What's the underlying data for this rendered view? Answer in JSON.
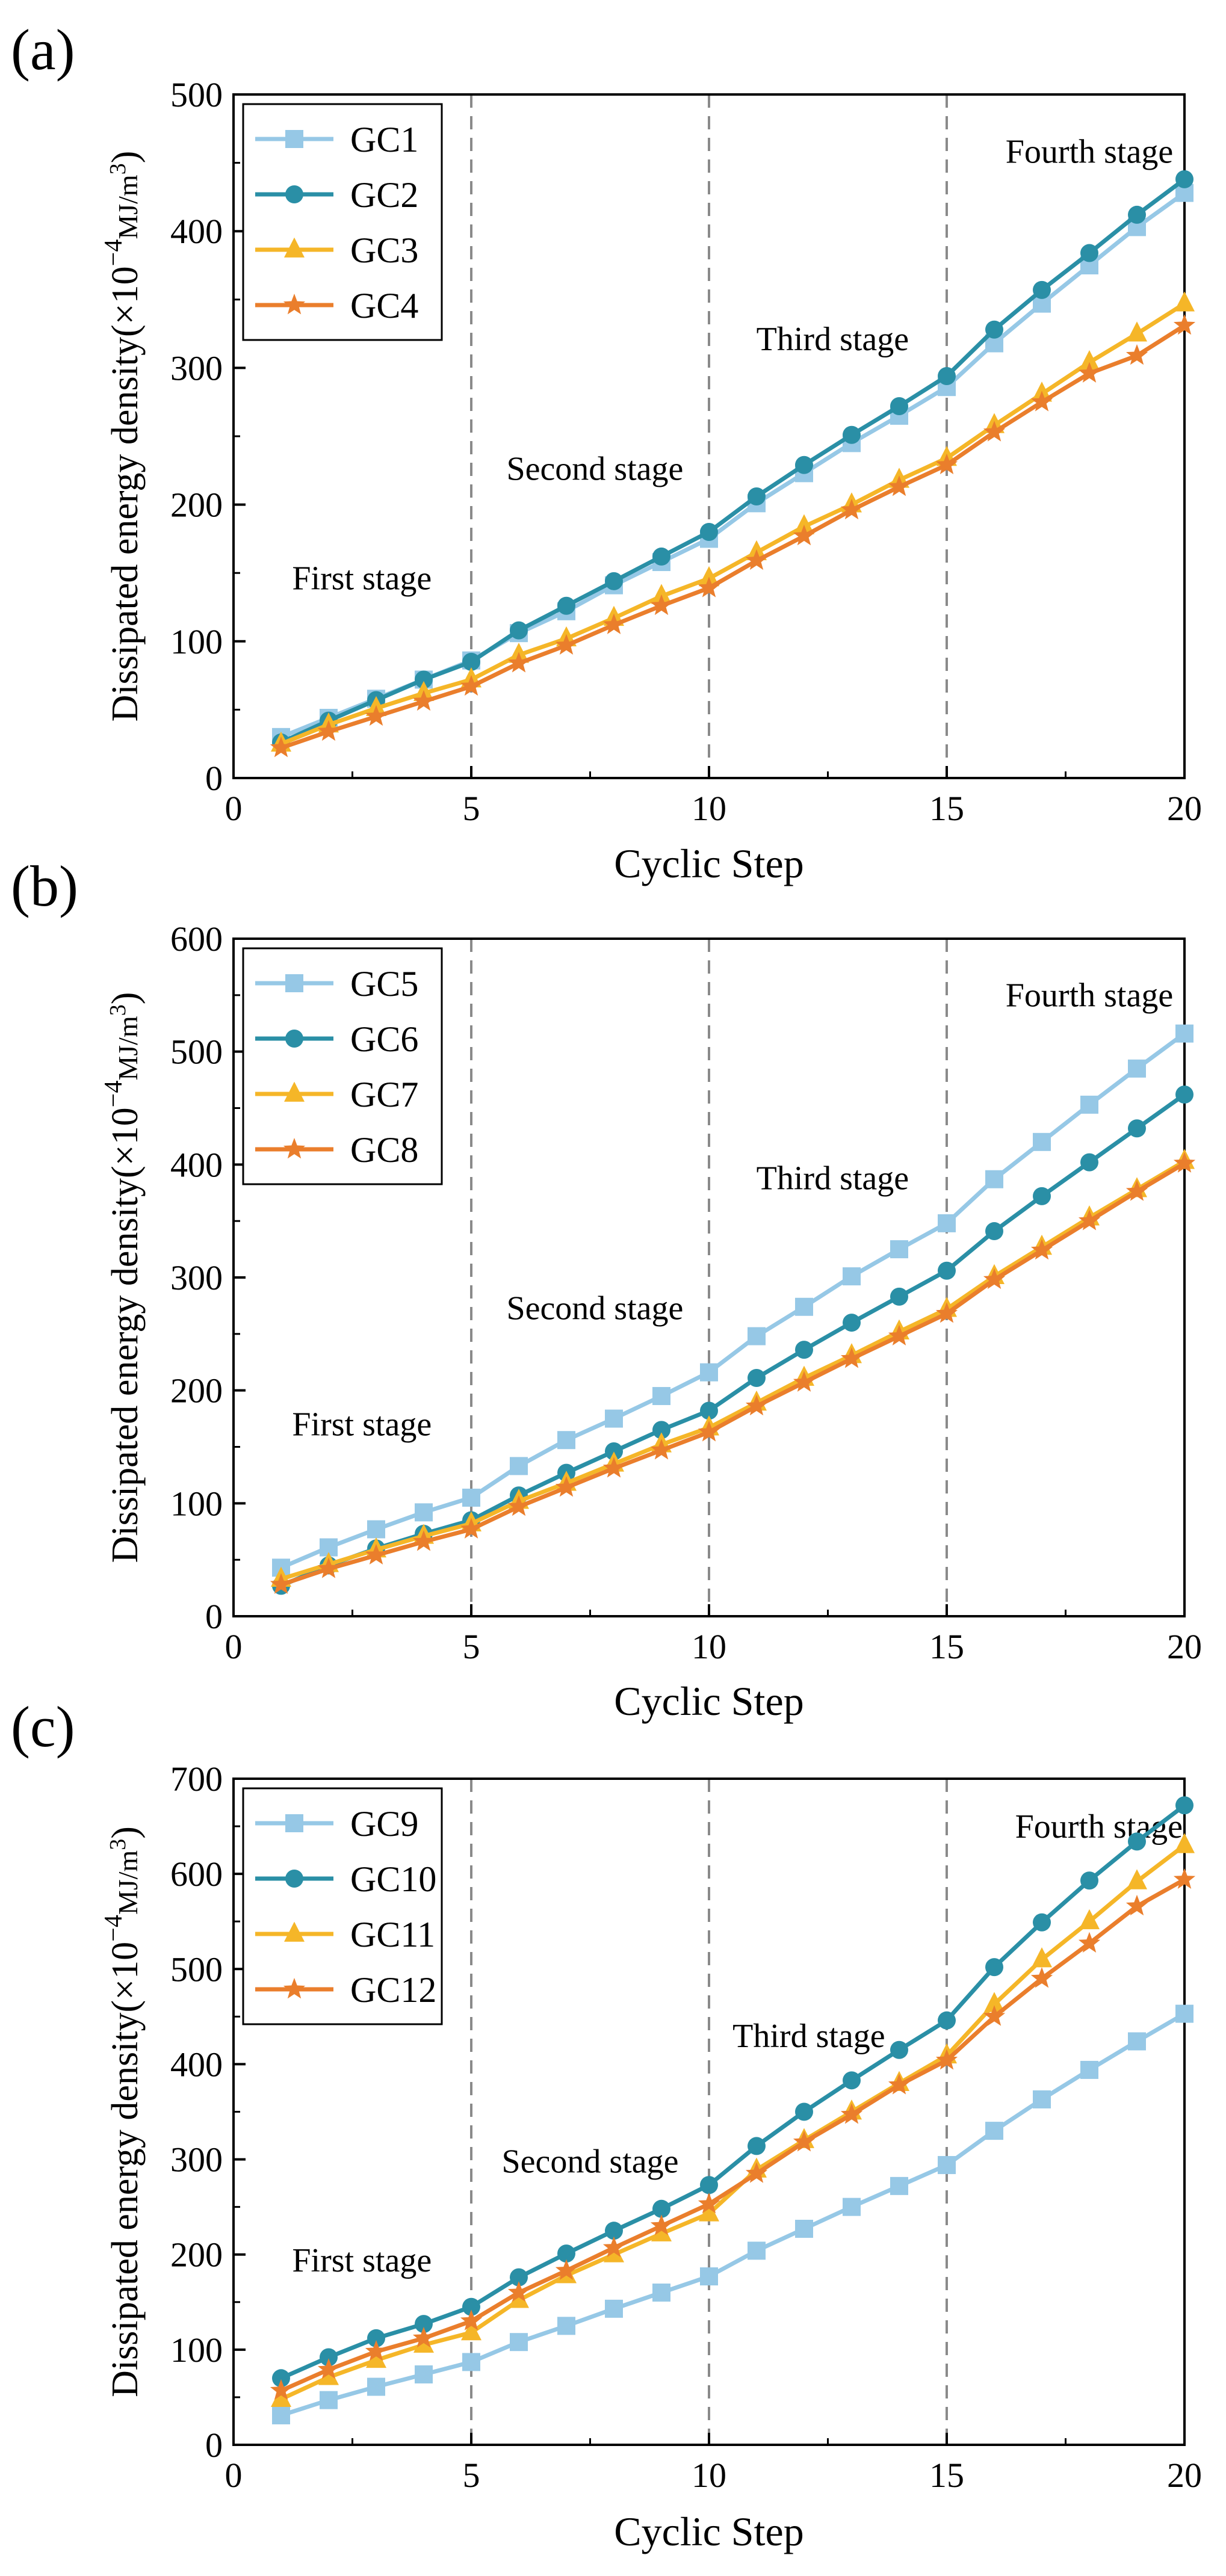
{
  "colors": {
    "series1": "#96c8e6",
    "series2": "#2a8fa6",
    "series3": "#f5b628",
    "series4": "#ea7e2c",
    "stage_line": "#8a8a8a"
  },
  "chart_data": [
    {
      "type": "line",
      "panel_label": "(a)",
      "xlabel": "Cyclic Step",
      "ylabel": "Dissipated energy density(×10",
      "ylabel_exp": "−4",
      "ylabel_unit": "MJ/m",
      "ylabel_unit_exp": "3",
      "ylabel_close": ")",
      "xlim": [
        0,
        20
      ],
      "ylim": [
        0,
        500
      ],
      "xticks": [
        "0",
        "5",
        "10",
        "15",
        "20"
      ],
      "yticks": [
        "0",
        "100",
        "200",
        "300",
        "400",
        "500"
      ],
      "legend_position": "top-left",
      "stage_boundaries": [
        5,
        10,
        15
      ],
      "stages": [
        {
          "label": "First stage",
          "x": 2.7,
          "y": 138
        },
        {
          "label": "Second stage",
          "x": 7.6,
          "y": 218
        },
        {
          "label": "Third stage",
          "x": 12.6,
          "y": 313
        },
        {
          "label": "Fourth stage",
          "x": 18.0,
          "y": 450
        }
      ],
      "x": [
        1,
        2,
        3,
        4,
        5,
        6,
        7,
        8,
        9,
        10,
        11,
        12,
        13,
        14,
        15,
        16,
        17,
        18,
        19,
        20
      ],
      "series": [
        {
          "name": "GC1",
          "marker": "square",
          "values": [
            30,
            44,
            58,
            72,
            86,
            106,
            122,
            141,
            158,
            175,
            201,
            223,
            245,
            265,
            286,
            318,
            347,
            375,
            403,
            428
          ]
        },
        {
          "name": "GC2",
          "marker": "circle",
          "values": [
            26,
            42,
            57,
            72,
            85,
            108,
            126,
            144,
            162,
            180,
            206,
            229,
            251,
            272,
            294,
            328,
            357,
            384,
            412,
            438
          ]
        },
        {
          "name": "GC3",
          "marker": "triangle",
          "values": [
            25,
            39,
            51,
            62,
            72,
            90,
            102,
            117,
            133,
            146,
            165,
            184,
            200,
            218,
            234,
            258,
            281,
            304,
            325,
            347
          ]
        },
        {
          "name": "GC4",
          "marker": "star",
          "values": [
            22,
            34,
            45,
            56,
            67,
            84,
            97,
            112,
            126,
            139,
            159,
            177,
            196,
            213,
            229,
            253,
            275,
            296,
            309,
            331
          ]
        }
      ]
    },
    {
      "type": "line",
      "panel_label": "(b)",
      "xlabel": "Cyclic Step",
      "ylabel": "Dissipated energy density(×10",
      "ylabel_exp": "−4",
      "ylabel_unit": "MJ/m",
      "ylabel_unit_exp": "3",
      "ylabel_close": ")",
      "xlim": [
        0,
        20
      ],
      "ylim": [
        0,
        600
      ],
      "xticks": [
        "0",
        "5",
        "10",
        "15",
        "20"
      ],
      "yticks": [
        "0",
        "100",
        "200",
        "300",
        "400",
        "500",
        "600"
      ],
      "legend_position": "top-left",
      "stage_boundaries": [
        5,
        10,
        15
      ],
      "stages": [
        {
          "label": "First stage",
          "x": 2.7,
          "y": 160
        },
        {
          "label": "Second stage",
          "x": 7.6,
          "y": 263
        },
        {
          "label": "Third stage",
          "x": 12.6,
          "y": 378
        },
        {
          "label": "Fourth stage",
          "x": 18.0,
          "y": 540
        }
      ],
      "x": [
        1,
        2,
        3,
        4,
        5,
        6,
        7,
        8,
        9,
        10,
        11,
        12,
        13,
        14,
        15,
        16,
        17,
        18,
        19,
        20
      ],
      "series": [
        {
          "name": "GC5",
          "marker": "square",
          "values": [
            43,
            61,
            77,
            92,
            105,
            133,
            156,
            175,
            195,
            216,
            248,
            274,
            301,
            325,
            348,
            387,
            420,
            453,
            485,
            516
          ]
        },
        {
          "name": "GC6",
          "marker": "circle",
          "values": [
            27,
            45,
            60,
            73,
            85,
            107,
            127,
            146,
            165,
            182,
            211,
            236,
            260,
            283,
            306,
            341,
            372,
            402,
            432,
            462
          ]
        },
        {
          "name": "GC7",
          "marker": "triangle",
          "values": [
            33,
            46,
            59,
            71,
            82,
            102,
            118,
            135,
            152,
            167,
            189,
            211,
            231,
            252,
            272,
            301,
            327,
            353,
            378,
            403
          ]
        },
        {
          "name": "GC8",
          "marker": "star",
          "values": [
            28,
            42,
            54,
            66,
            77,
            97,
            114,
            131,
            147,
            163,
            186,
            207,
            228,
            248,
            268,
            298,
            324,
            350,
            376,
            401
          ]
        }
      ]
    },
    {
      "type": "line",
      "panel_label": "(c)",
      "xlabel": "Cyclic Step",
      "ylabel": "Dissipated energy density(×10",
      "ylabel_exp": "−4",
      "ylabel_unit": "MJ/m",
      "ylabel_unit_exp": "3",
      "ylabel_close": ")",
      "xlim": [
        0,
        20
      ],
      "ylim": [
        0,
        700
      ],
      "xticks": [
        "0",
        "5",
        "10",
        "15",
        "20"
      ],
      "yticks": [
        "0",
        "100",
        "200",
        "300",
        "400",
        "500",
        "600",
        "700"
      ],
      "legend_position": "top-left",
      "stage_boundaries": [
        5,
        10,
        15
      ],
      "stages": [
        {
          "label": "First stage",
          "x": 2.7,
          "y": 182
        },
        {
          "label": "Second stage",
          "x": 7.5,
          "y": 286
        },
        {
          "label": "Third stage",
          "x": 12.1,
          "y": 418
        },
        {
          "label": "Fourth stage",
          "x": 18.2,
          "y": 638
        }
      ],
      "x": [
        1,
        2,
        3,
        4,
        5,
        6,
        7,
        8,
        9,
        10,
        11,
        12,
        13,
        14,
        15,
        16,
        17,
        18,
        19,
        20
      ],
      "series": [
        {
          "name": "GC9",
          "marker": "square",
          "values": [
            31,
            47,
            61,
            74,
            87,
            108,
            125,
            143,
            160,
            177,
            204,
            227,
            250,
            272,
            294,
            330,
            363,
            394,
            424,
            453
          ]
        },
        {
          "name": "GC10",
          "marker": "circle",
          "values": [
            70,
            92,
            112,
            127,
            145,
            176,
            201,
            225,
            248,
            273,
            314,
            350,
            383,
            415,
            446,
            502,
            549,
            593,
            634,
            672
          ]
        },
        {
          "name": "GC11",
          "marker": "triangle",
          "values": [
            48,
            71,
            89,
            105,
            118,
            152,
            178,
            200,
            222,
            243,
            289,
            320,
            350,
            380,
            409,
            463,
            510,
            550,
            592,
            630
          ]
        },
        {
          "name": "GC12",
          "marker": "star",
          "values": [
            57,
            79,
            98,
            112,
            130,
            160,
            183,
            207,
            230,
            253,
            285,
            318,
            347,
            378,
            404,
            450,
            490,
            527,
            566,
            594
          ]
        }
      ]
    }
  ]
}
